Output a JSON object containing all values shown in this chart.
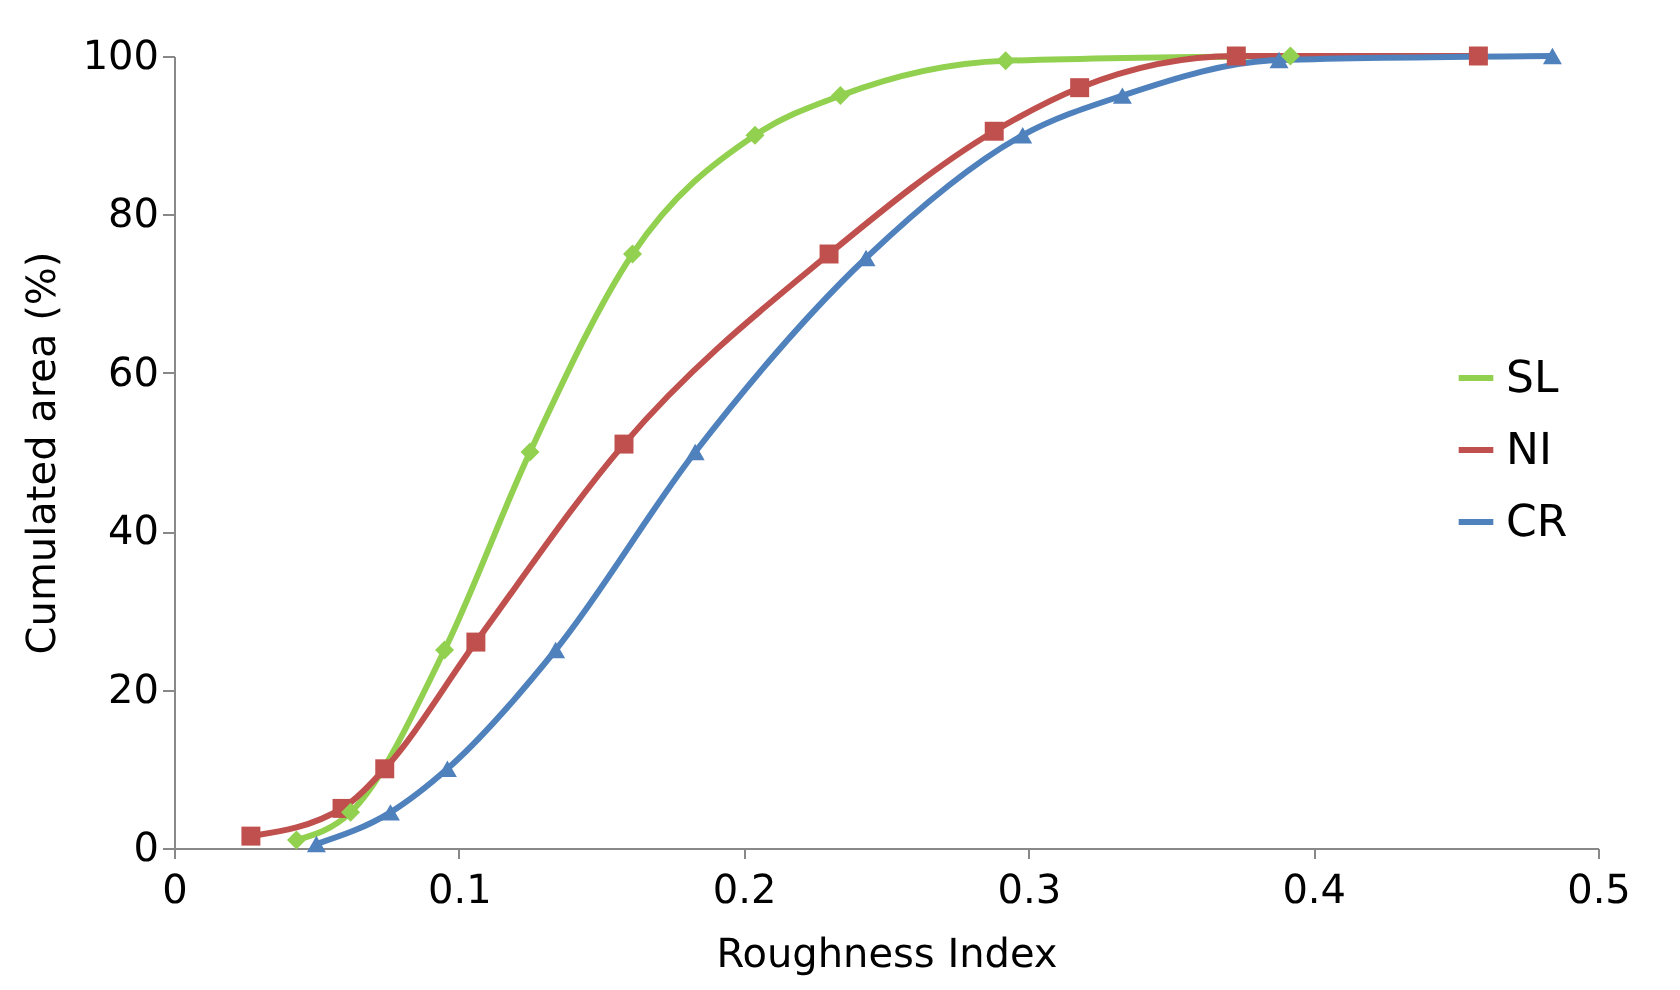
{
  "chart_data": {
    "type": "line",
    "xlabel": "Roughness Index",
    "ylabel": "Cumulated area (%)",
    "xlim": [
      0,
      0.5
    ],
    "xticks": [
      0,
      0.1,
      0.2,
      0.3,
      0.4,
      0.5
    ],
    "ylim": [
      0,
      100
    ],
    "yticks": [
      0,
      20,
      40,
      60,
      80,
      100
    ],
    "grid": false,
    "legend": "right",
    "line_style": "solid",
    "series": [
      {
        "name": "SL",
        "color": "#92d050",
        "marker": "diamond",
        "x": [
          0.043,
          0.062,
          0.095,
          0.125,
          0.161,
          0.204,
          0.234,
          0.292,
          0.392
        ],
        "values": [
          1,
          4.5,
          25,
          50,
          75,
          90,
          95,
          99.4,
          100
        ]
      },
      {
        "name": "NI",
        "color": "#c0504d",
        "marker": "square",
        "x": [
          0.027,
          0.059,
          0.074,
          0.106,
          0.158,
          0.23,
          0.288,
          0.318,
          0.373,
          0.458
        ],
        "values": [
          1.5,
          5,
          10,
          26,
          51,
          75,
          90.5,
          96,
          100,
          100
        ]
      },
      {
        "name": "CR",
        "color": "#4f81bd",
        "marker": "triangle",
        "x": [
          0.05,
          0.076,
          0.096,
          0.134,
          0.183,
          0.243,
          0.298,
          0.333,
          0.388,
          0.484
        ],
        "values": [
          0.5,
          4.5,
          10,
          25,
          50,
          74.5,
          90,
          95,
          99.5,
          100
        ]
      }
    ]
  }
}
